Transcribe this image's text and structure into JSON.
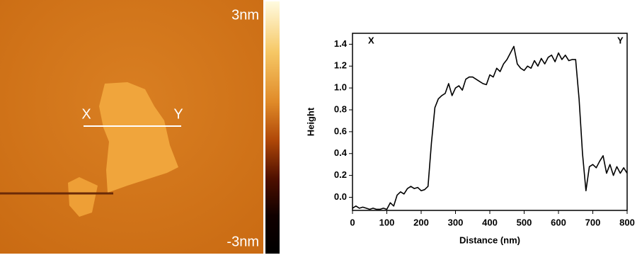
{
  "afm_image": {
    "colorbar_max": "3nm",
    "colorbar_min": "-3nm",
    "marker_start": "X",
    "marker_end": "Y"
  },
  "chart_data": {
    "type": "line",
    "x_label": "Distance (nm)",
    "y_label": "Height",
    "annotations": [
      "X",
      "Y"
    ],
    "color": "#000000",
    "x": [
      0,
      10,
      20,
      30,
      40,
      50,
      60,
      70,
      80,
      90,
      100,
      110,
      120,
      130,
      140,
      150,
      160,
      170,
      180,
      190,
      200,
      210,
      220,
      230,
      240,
      250,
      260,
      270,
      280,
      290,
      300,
      310,
      320,
      330,
      340,
      350,
      360,
      370,
      380,
      390,
      400,
      410,
      420,
      430,
      440,
      450,
      460,
      470,
      480,
      490,
      500,
      510,
      520,
      530,
      540,
      550,
      560,
      570,
      580,
      590,
      600,
      610,
      620,
      630,
      640,
      650,
      660,
      670,
      680,
      690,
      700,
      710,
      720,
      730,
      740,
      750,
      760,
      770,
      780,
      790,
      800
    ],
    "values": [
      -0.1,
      -0.08,
      -0.1,
      -0.09,
      -0.1,
      -0.11,
      -0.1,
      -0.11,
      -0.11,
      -0.1,
      -0.11,
      -0.05,
      -0.08,
      0.02,
      0.05,
      0.03,
      0.08,
      0.1,
      0.08,
      0.09,
      0.06,
      0.07,
      0.1,
      0.5,
      0.82,
      0.9,
      0.93,
      0.95,
      1.04,
      0.93,
      1.0,
      1.02,
      0.98,
      1.08,
      1.1,
      1.1,
      1.08,
      1.06,
      1.04,
      1.03,
      1.12,
      1.1,
      1.18,
      1.15,
      1.22,
      1.26,
      1.32,
      1.38,
      1.22,
      1.18,
      1.16,
      1.2,
      1.18,
      1.25,
      1.2,
      1.27,
      1.22,
      1.28,
      1.3,
      1.24,
      1.32,
      1.26,
      1.3,
      1.25,
      1.26,
      1.26,
      0.9,
      0.4,
      0.06,
      0.28,
      0.3,
      0.27,
      0.33,
      0.38,
      0.22,
      0.3,
      0.2,
      0.28,
      0.22,
      0.27,
      0.22
    ],
    "xlim": [
      0,
      800
    ],
    "xticks": [
      0,
      100,
      200,
      300,
      400,
      500,
      600,
      700,
      800
    ],
    "ylim": [
      -0.12,
      1.5
    ],
    "yticks": [
      {
        "value": 0,
        "label": "0.0"
      },
      0.2,
      0.4,
      0.6,
      0.8,
      {
        "value": 1,
        "label": "1.0"
      },
      1.2,
      1.4
    ]
  }
}
